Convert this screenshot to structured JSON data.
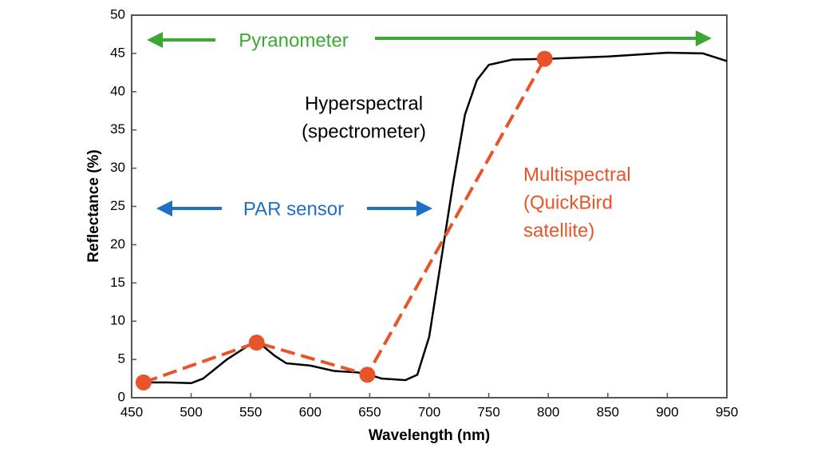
{
  "chart_data": {
    "type": "line",
    "xlabel": "Wavelength (nm)",
    "ylabel": "Reflectance (%)",
    "xlim": [
      450,
      950
    ],
    "xticks": [
      450,
      500,
      550,
      600,
      650,
      700,
      750,
      800,
      850,
      900,
      950
    ],
    "ylim": [
      0,
      50
    ],
    "yticks": [
      0,
      5,
      10,
      15,
      20,
      25,
      30,
      35,
      40,
      45,
      50
    ],
    "series": [
      {
        "color": "#000000",
        "style": "solid",
        "markers": false,
        "x": [
          460,
          480,
          500,
          510,
          530,
          550,
          560,
          570,
          580,
          600,
          620,
          640,
          650,
          660,
          680,
          690,
          700,
          710,
          720,
          730,
          740,
          750,
          770,
          800,
          850,
          900,
          930,
          950
        ],
        "values": [
          2,
          2,
          1.9,
          2.5,
          5,
          7,
          6.8,
          5.5,
          4.5,
          4.2,
          3.5,
          3.3,
          3,
          2.5,
          2.3,
          3,
          8,
          18,
          28,
          37,
          41.5,
          43.5,
          44.2,
          44.3,
          44.6,
          45.1,
          45,
          44
        ]
      },
      {
        "color": "#e8542a",
        "style": "dashed",
        "markers": true,
        "x": [
          460,
          555,
          648,
          797
        ],
        "values": [
          2,
          7.2,
          3,
          44.3
        ]
      }
    ],
    "annotations": [
      {
        "lines": [
          "Pyranometer"
        ],
        "color": "#3aa832"
      },
      {
        "lines": [
          "Hyperspectral",
          "(spectrometer)"
        ],
        "color": "#000000"
      },
      {
        "lines": [
          "PAR sensor"
        ],
        "color": "#1f6fc5"
      },
      {
        "lines": [
          "Multispectral",
          "(QuickBird",
          "satellite)"
        ],
        "color": "#e8542a"
      }
    ]
  }
}
